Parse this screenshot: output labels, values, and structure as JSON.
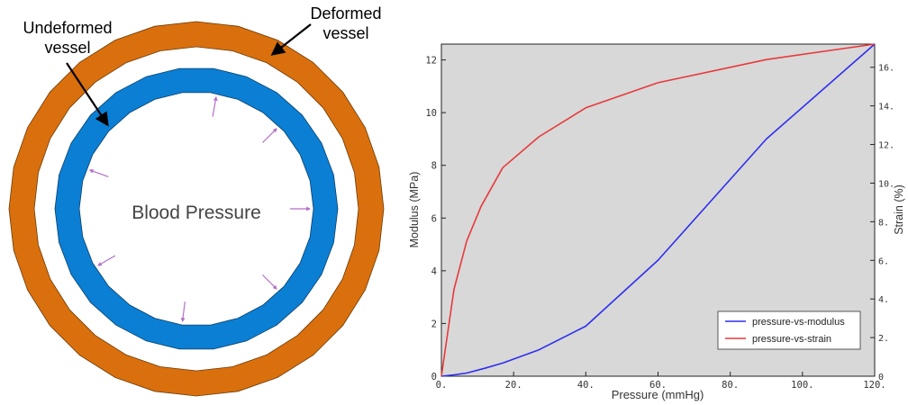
{
  "diagram": {
    "undeformed_label_line1": "Undeformed",
    "undeformed_label_line2": "vessel",
    "deformed_label_line1": "Deformed",
    "deformed_label_line2": "vessel",
    "center_label": "Blood Pressure",
    "colors": {
      "deformed": "#D9700D",
      "undeformed": "#0A7FD4",
      "pressure_arrows": "#B46EC8"
    }
  },
  "chart_data": {
    "type": "line",
    "xlabel": "Pressure (mmHg)",
    "ylabel_left": "Modulus (MPa)",
    "ylabel_right": "Strain (%)",
    "xlim": [
      0,
      120
    ],
    "ylim_left": [
      0,
      12.6
    ],
    "ylim_right": [
      0,
      17.2
    ],
    "x_ticks": [
      {
        "value": 0,
        "label": "0."
      },
      {
        "value": 20,
        "label": "20."
      },
      {
        "value": 40,
        "label": "40."
      },
      {
        "value": 60,
        "label": "60."
      },
      {
        "value": 80,
        "label": "80."
      },
      {
        "value": 100,
        "label": "100."
      },
      {
        "value": 120,
        "label": "120."
      }
    ],
    "y_ticks_left": [
      {
        "value": 0,
        "label": "0"
      },
      {
        "value": 2,
        "label": "2"
      },
      {
        "value": 4,
        "label": "4"
      },
      {
        "value": 6,
        "label": "6"
      },
      {
        "value": 8,
        "label": "8"
      },
      {
        "value": 10,
        "label": "10"
      },
      {
        "value": 12,
        "label": "12"
      }
    ],
    "y_ticks_right": [
      {
        "value": 0,
        "label": "0"
      },
      {
        "value": 2,
        "label": "2."
      },
      {
        "value": 4,
        "label": "4."
      },
      {
        "value": 6,
        "label": "6."
      },
      {
        "value": 8,
        "label": "8."
      },
      {
        "value": 10,
        "label": "10."
      },
      {
        "value": 12,
        "label": "12."
      },
      {
        "value": 14,
        "label": "14."
      },
      {
        "value": 16,
        "label": "16."
      }
    ],
    "plot_background": "#D8D8D8",
    "legend_position": "bottom-right",
    "series": [
      {
        "name": "pressure-vs-modulus",
        "axis": "left",
        "color": "#2E2EF0",
        "x": [
          0,
          3.5,
          7,
          12,
          17,
          27,
          40,
          60,
          90,
          120
        ],
        "y": [
          0,
          0.05,
          0.12,
          0.3,
          0.5,
          1.0,
          1.9,
          4.4,
          9.0,
          12.6
        ]
      },
      {
        "name": "pressure-vs-strain",
        "axis": "right",
        "color": "#E8393B",
        "x": [
          0,
          3.5,
          7,
          11,
          17,
          27,
          40,
          60,
          90,
          120
        ],
        "y": [
          0,
          4.5,
          7.0,
          8.8,
          10.8,
          12.4,
          13.9,
          15.2,
          16.4,
          17.2
        ]
      }
    ]
  }
}
